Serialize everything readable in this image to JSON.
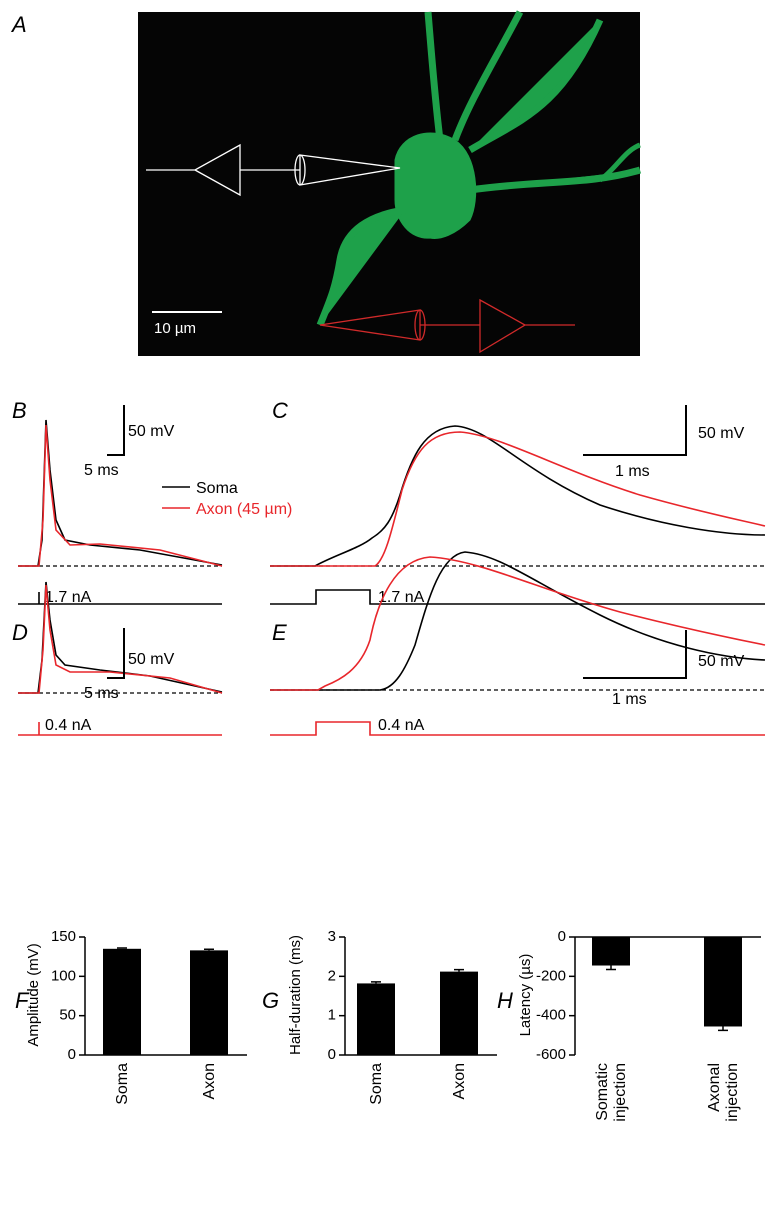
{
  "panel_labels": [
    "A",
    "B",
    "C",
    "D",
    "E",
    "F",
    "G",
    "H"
  ],
  "image": {
    "scale_bar": "10 µm"
  },
  "traces": {
    "legend": [
      "Soma",
      "Axon (45 µm)"
    ],
    "B": {
      "scale_y": "50 mV",
      "scale_x": "5 ms",
      "stimulus": "1.7 nA"
    },
    "C": {
      "scale_y": "50 mV",
      "scale_x": "1 ms",
      "stimulus": "1.7 nA"
    },
    "D": {
      "scale_y": "50 mV",
      "scale_x": "5 ms",
      "stimulus": "0.4 nA"
    },
    "E": {
      "scale_y": "50 mV",
      "scale_x": "1 ms",
      "stimulus": "0.4 nA"
    }
  },
  "chart_data": [
    {
      "type": "bar",
      "y_label": "Amplitude (mV)",
      "categories": [
        "Soma",
        "Axon"
      ],
      "values": [
        135,
        133
      ],
      "errors": [
        1,
        1.5
      ],
      "color": "#000000",
      "ylim": [
        0,
        150
      ],
      "yticks": [
        0,
        50,
        100,
        150
      ]
    },
    {
      "type": "bar",
      "y_label": "Half-duration (ms)",
      "categories": [
        "Soma",
        "Axon"
      ],
      "values": [
        1.82,
        2.12
      ],
      "errors": [
        0.04,
        0.05
      ],
      "color": "#000000",
      "ylim": [
        0,
        3
      ],
      "yticks": [
        0,
        1,
        2,
        3
      ]
    },
    {
      "type": "bar",
      "y_label": "Latency (µs)",
      "categories": [
        "Somatic injection",
        "Axonal injection"
      ],
      "values": [
        -145,
        -455
      ],
      "errors": [
        20,
        20
      ],
      "color": "#000000",
      "ylim": [
        -600,
        0
      ],
      "yticks": [
        -600,
        -400,
        -200,
        0
      ]
    }
  ]
}
